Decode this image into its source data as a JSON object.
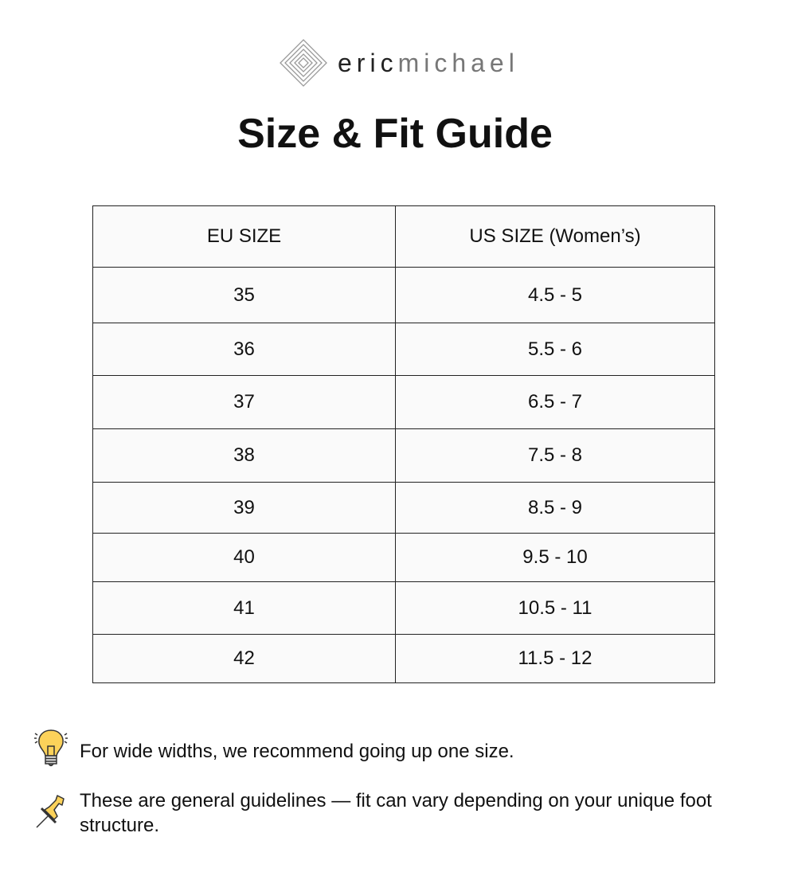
{
  "logo": {
    "part1": "eric",
    "part2": "michael"
  },
  "title": "Size & Fit Guide",
  "table": {
    "headers": [
      "EU SIZE",
      "US SIZE (Women’s)"
    ],
    "rows": [
      [
        "35",
        "4.5 - 5"
      ],
      [
        "36",
        "5.5 - 6"
      ],
      [
        "37",
        "6.5 - 7"
      ],
      [
        "38",
        "7.5 - 8"
      ],
      [
        "39",
        "8.5 - 9"
      ],
      [
        "40",
        "9.5 - 10"
      ],
      [
        "41",
        "10.5 - 11"
      ],
      [
        "42",
        "11.5 - 12"
      ]
    ]
  },
  "notes": [
    {
      "icon": "lightbulb-icon",
      "text": "For wide widths, we recommend going up one size."
    },
    {
      "icon": "pushpin-icon",
      "text": "These are general guidelines — fit can vary depending on your unique foot structure."
    }
  ]
}
